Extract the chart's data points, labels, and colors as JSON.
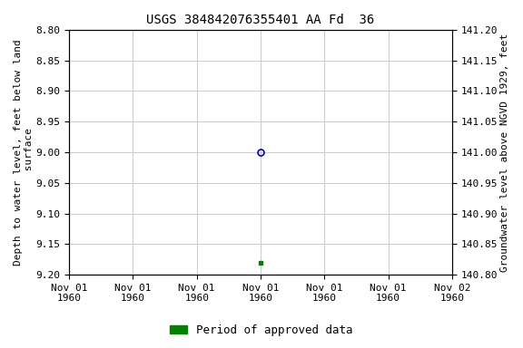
{
  "title": "USGS 384842076355401 AA Fd  36",
  "ylabel_left": "Depth to water level, feet below land\n surface",
  "ylabel_right": "Groundwater level above NGVD 1929, feet",
  "ylim_left": [
    8.8,
    9.2
  ],
  "ylim_right": [
    140.8,
    141.2
  ],
  "yticks_left": [
    8.8,
    8.85,
    8.9,
    8.95,
    9.0,
    9.05,
    9.1,
    9.15,
    9.2
  ],
  "yticks_right": [
    140.8,
    140.85,
    140.9,
    140.95,
    141.0,
    141.05,
    141.1,
    141.15,
    141.2
  ],
  "xtick_labels": [
    "Nov 01\n1960",
    "Nov 01\n1960",
    "Nov 01\n1960",
    "Nov 01\n1960",
    "Nov 01\n1960",
    "Nov 01\n1960",
    "Nov 02\n1960"
  ],
  "xlim": [
    0.0,
    6.0
  ],
  "xtick_positions": [
    0,
    1,
    2,
    3,
    4,
    5,
    6
  ],
  "point_blue_x": 3.0,
  "point_blue_y": 9.0,
  "point_green_x": 3.0,
  "point_green_y": 9.18,
  "point_blue_color": "#0000cc",
  "point_green_color": "#008000",
  "legend_label": "Period of approved data",
  "legend_color": "#008000",
  "background_color": "#ffffff",
  "grid_color": "#cccccc",
  "title_fontsize": 10,
  "label_fontsize": 8,
  "tick_fontsize": 8,
  "legend_fontsize": 9
}
